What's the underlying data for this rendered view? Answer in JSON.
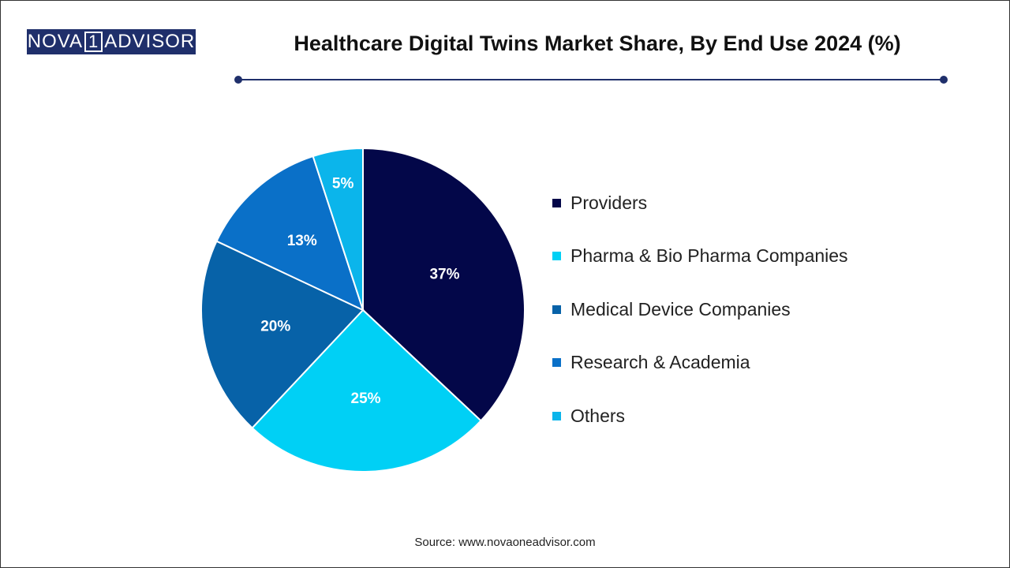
{
  "logo": {
    "text_left": "NOVA",
    "text_one": "1",
    "text_right": "ADVISOR"
  },
  "header": {
    "title": "Healthcare Digital Twins Market Share, By End Use 2024 (%)"
  },
  "source": "Source: www.novaoneadvisor.com",
  "colors": {
    "providers": "#030749",
    "pharma": "#00d0f5",
    "medical_device": "#0762a8",
    "research": "#0a70c8",
    "others": "#0bb5eb"
  },
  "chart_data": {
    "type": "pie",
    "title": "Healthcare Digital Twins Market Share, By End Use 2024 (%)",
    "legend_position": "right",
    "slices": [
      {
        "name": "Providers",
        "value": 37,
        "label": "37%",
        "color": "#030749"
      },
      {
        "name": "Pharma & Bio Pharma Companies",
        "value": 25,
        "label": "25%",
        "color": "#00d0f5"
      },
      {
        "name": "Medical Device Companies",
        "value": 20,
        "label": "20%",
        "color": "#0762a8"
      },
      {
        "name": "Research & Academia",
        "value": 13,
        "label": "13%",
        "color": "#0a70c8"
      },
      {
        "name": "Others",
        "value": 5,
        "label": "5%",
        "color": "#0bb5eb"
      }
    ]
  }
}
